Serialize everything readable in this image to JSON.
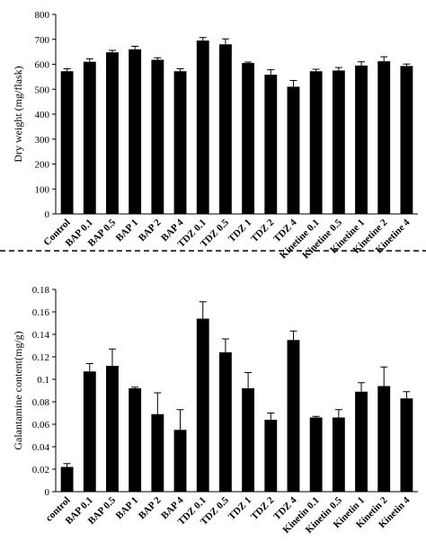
{
  "chart_data": [
    {
      "type": "bar",
      "y_label": "Dry weight  (mg/flask)",
      "categories": [
        "Control",
        "BAP 0.1",
        "BAP 0.5",
        "BAP 1",
        "BAP 2",
        "BAP 4",
        "TDZ 0.1",
        "TDZ 0.5",
        "TDZ 1",
        "TDZ 2",
        "TDZ 4",
        "Kinetine 0.1",
        "Kinetine 0.5",
        "Kinetine 1",
        "Kinetine 2",
        "Kinetine 4"
      ],
      "values": [
        572,
        610,
        648,
        660,
        618,
        572,
        695,
        680,
        605,
        558,
        510,
        572,
        575,
        595,
        612,
        593
      ],
      "errors": [
        10,
        12,
        8,
        12,
        8,
        10,
        12,
        22,
        4,
        20,
        25,
        8,
        12,
        15,
        18,
        8
      ],
      "color": "#000000",
      "ylim": [
        0,
        800
      ],
      "yticks": [
        0,
        100,
        200,
        300,
        400,
        500,
        600,
        700,
        800
      ]
    },
    {
      "type": "bar",
      "y_label": "Galantamine  content(mg/g)",
      "categories": [
        "control",
        "BAP 0.1",
        "BAP 0.5",
        "BAP 1",
        "BAP 2",
        "BAP 4",
        "TDZ 0.1",
        "TDZ 0.5",
        "TDZ 1",
        "TDZ 2",
        "TDZ 4",
        "Kinetin 0.1",
        "Kinetin 0.5",
        "Kinetin 1",
        "Kinetin 2",
        "Kinetin 4"
      ],
      "values": [
        0.022,
        0.107,
        0.112,
        0.092,
        0.069,
        0.055,
        0.154,
        0.124,
        0.092,
        0.064,
        0.135,
        0.066,
        0.066,
        0.089,
        0.094,
        0.083
      ],
      "errors": [
        0.003,
        0.007,
        0.015,
        0.001,
        0.019,
        0.018,
        0.015,
        0.012,
        0.014,
        0.006,
        0.008,
        0.001,
        0.007,
        0.008,
        0.017,
        0.006
      ],
      "color": "#000000",
      "ylim": [
        0,
        0.18
      ],
      "yticks": [
        0,
        0.02,
        0.04,
        0.06,
        0.08,
        0.1,
        0.12,
        0.14,
        0.16,
        0.18
      ]
    }
  ]
}
